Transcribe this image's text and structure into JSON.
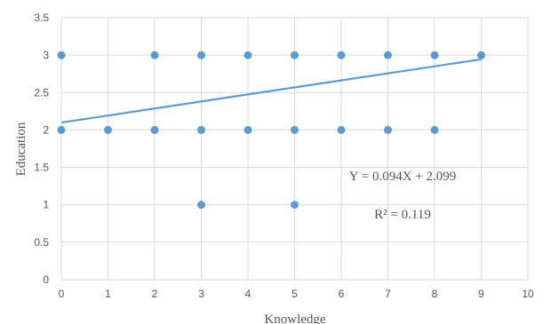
{
  "chart_data": {
    "type": "scatter",
    "title": "",
    "xlabel": "Knowledge",
    "ylabel": "Education",
    "xlim": [
      0,
      10
    ],
    "ylim": [
      0,
      3.5
    ],
    "xticks": [
      "0",
      "1",
      "2",
      "3",
      "4",
      "5",
      "6",
      "7",
      "8",
      "9",
      "10"
    ],
    "yticks": [
      "0",
      "0.5",
      "1",
      "1.5",
      "2",
      "2.5",
      "3",
      "3.5"
    ],
    "grid": true,
    "series": [
      {
        "points": [
          [
            0,
            3
          ],
          [
            2,
            3
          ],
          [
            3,
            3
          ],
          [
            4,
            3
          ],
          [
            5,
            3
          ],
          [
            6,
            3
          ],
          [
            7,
            3
          ],
          [
            8,
            3
          ],
          [
            9,
            3
          ],
          [
            0,
            2
          ],
          [
            1,
            2
          ],
          [
            2,
            2
          ],
          [
            3,
            2
          ],
          [
            4,
            2
          ],
          [
            5,
            2
          ],
          [
            6,
            2
          ],
          [
            7,
            2
          ],
          [
            8,
            2
          ],
          [
            3,
            1
          ],
          [
            5,
            1
          ]
        ]
      }
    ],
    "trendline": {
      "slope": 0.094,
      "intercept": 2.099,
      "x_range": [
        0,
        9
      ],
      "equation": "Y = 0.094X + 2.099",
      "r2_label": "R² = 0.119"
    },
    "colors": {
      "marker": "#5B9BD5",
      "trendline": "#5B9BD5",
      "grid": "#D9D9D9",
      "text": "#555555"
    }
  }
}
